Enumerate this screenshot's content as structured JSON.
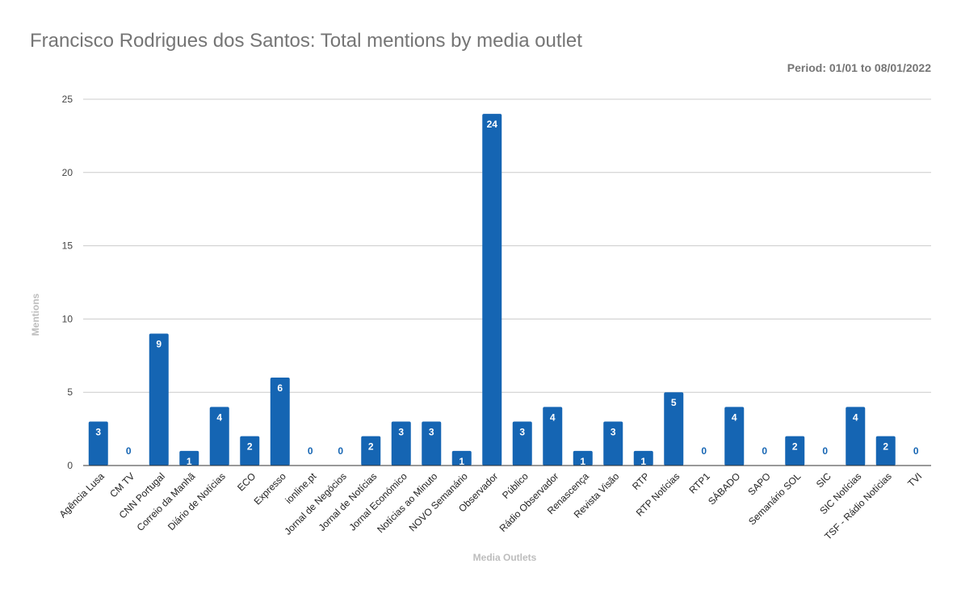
{
  "title": "Francisco Rodrigues dos Santos: Total mentions by media outlet",
  "subtitle": "Period: 01/01 to 08/01/2022",
  "colors": {
    "bar": "#1565b3",
    "bar_label": "#ffffff",
    "zero_label": "#1565b3",
    "grid": "#cccccc",
    "axis": "#333333"
  },
  "chart_data": {
    "type": "bar",
    "title": "Francisco Rodrigues dos Santos: Total mentions by media outlet",
    "subtitle": "Period: 01/01 to 08/01/2022",
    "xlabel": "Media Outlets",
    "ylabel": "Mentions",
    "ylim": [
      0,
      25
    ],
    "yticks": [
      0,
      5,
      10,
      15,
      20,
      25
    ],
    "grid": true,
    "legend": "none",
    "categories": [
      "Agência Lusa",
      "CM TV",
      "CNN Portugal",
      "Correio da Manhã",
      "Diário de Notícias",
      "ECO",
      "Expresso",
      "ionline.pt",
      "Jornal de Negócios",
      "Jornal de Notícias",
      "Jornal Económico",
      "Notícias ao Minuto",
      "NOVO Semanário",
      "Observador",
      "Público",
      "Rádio Observador",
      "Renascença",
      "Revista Visão",
      "RTP",
      "RTP Notícias",
      "RTP1",
      "SÁBADO",
      "SAPO",
      "Semanário SOL",
      "SIC",
      "SIC Notícias",
      "TSF - Rádio Notícias",
      "TVI"
    ],
    "values": [
      3,
      0,
      9,
      1,
      4,
      2,
      6,
      0,
      0,
      2,
      3,
      3,
      1,
      24,
      3,
      4,
      1,
      3,
      1,
      5,
      0,
      4,
      0,
      2,
      0,
      4,
      2,
      0
    ]
  }
}
